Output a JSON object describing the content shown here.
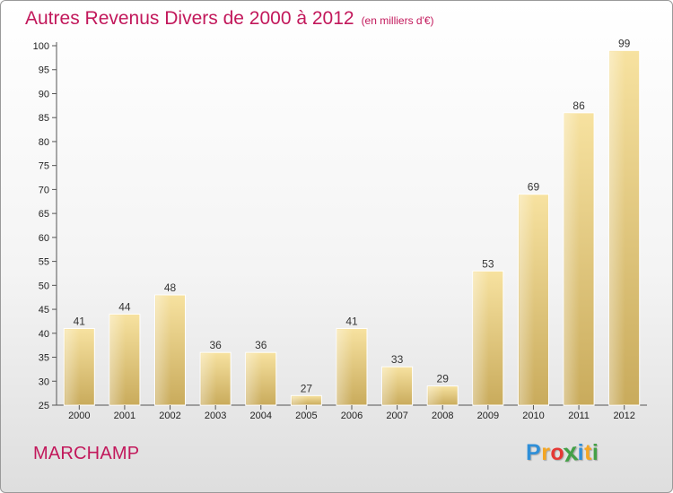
{
  "title": "Autres Revenus Divers de 2000 à 2012",
  "unit": "(en milliers d'€)",
  "commune": "MARCHAMP",
  "logo": {
    "letters": [
      "P",
      "r",
      "o",
      "x",
      "i",
      "t",
      "i"
    ],
    "colors": [
      "#2f8fd8",
      "#f5a623",
      "#e53935",
      "#43a047",
      "#2f8fd8",
      "#f5a623",
      "#43a047"
    ]
  },
  "colors": {
    "bar_top": "#f7e2a0",
    "bar_bottom": "#c9ab5c",
    "title": "#c2185b",
    "axis": "#555555"
  },
  "chart_data": {
    "type": "bar",
    "title": "Autres Revenus Divers de 2000 à 2012",
    "subtitle": "(en milliers d'€)",
    "categories": [
      "2000",
      "2001",
      "2002",
      "2003",
      "2004",
      "2005",
      "2006",
      "2007",
      "2008",
      "2009",
      "2010",
      "2011",
      "2012"
    ],
    "values": [
      41,
      44,
      48,
      36,
      36,
      27,
      41,
      33,
      29,
      53,
      69,
      86,
      99
    ],
    "ylim": [
      25,
      100
    ],
    "yticks": [
      25,
      30,
      35,
      40,
      45,
      50,
      55,
      60,
      65,
      70,
      75,
      80,
      85,
      90,
      95,
      100
    ],
    "grid": false,
    "legend": "none"
  }
}
